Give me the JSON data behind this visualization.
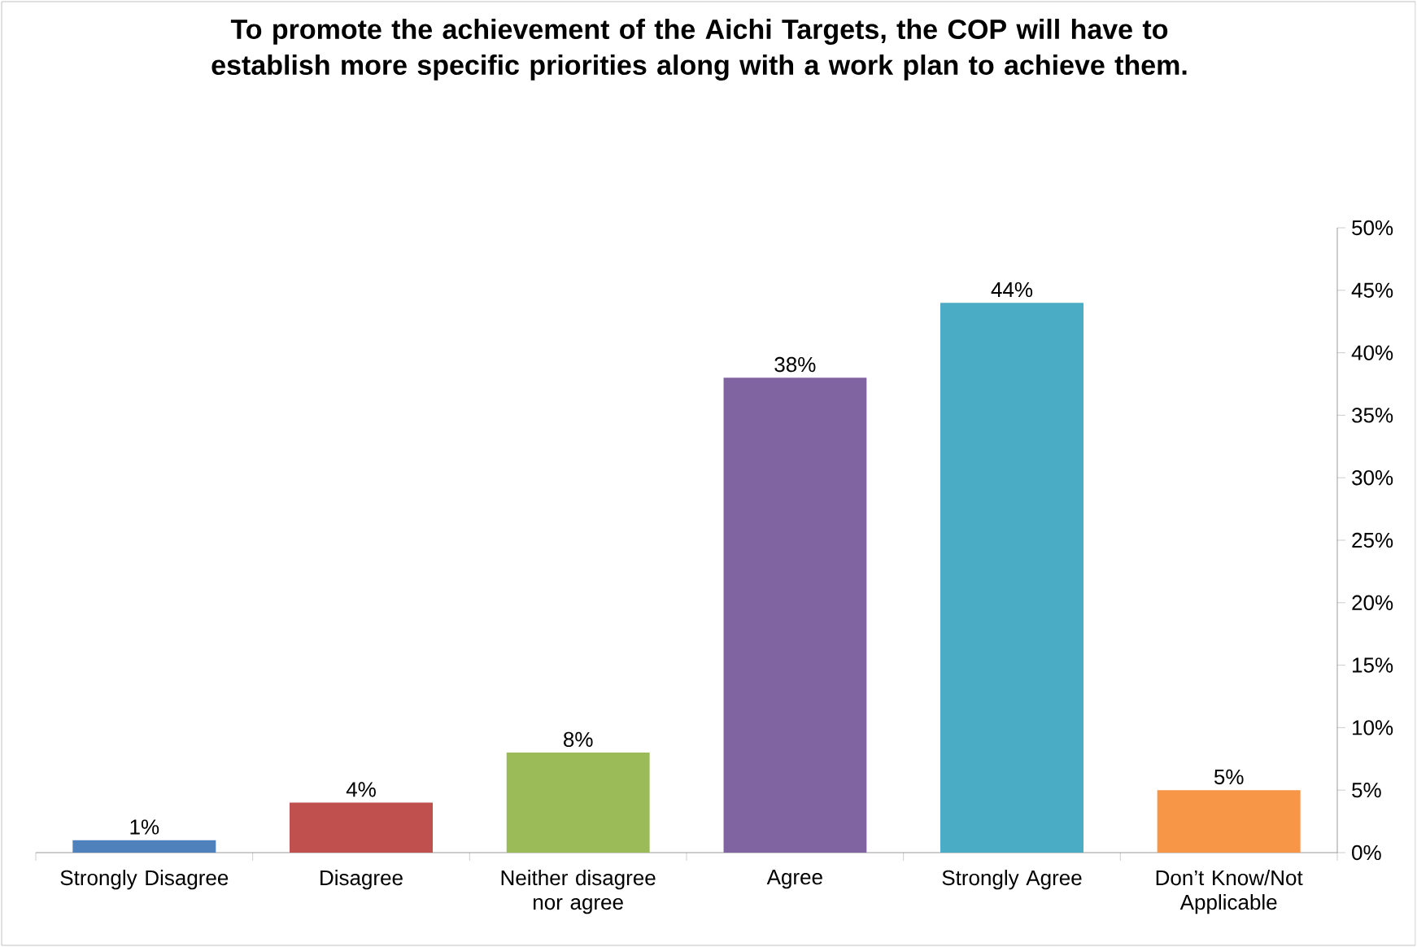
{
  "chart_data": {
    "type": "bar",
    "title": "To promote the achievement of the Aichi Targets, the COP will have to establish more specific priorities along with a work plan to achieve them.",
    "categories": [
      "Strongly Disagree",
      "Disagree",
      "Neither disagree nor agree",
      "Agree",
      "Strongly Agree",
      "Don’t Know/Not Applicable"
    ],
    "values": [
      1,
      4,
      8,
      38,
      44,
      5
    ],
    "value_labels": [
      "1%",
      "4%",
      "8%",
      "38%",
      "44%",
      "5%"
    ],
    "colors": [
      "#4f81bd",
      "#c0504d",
      "#9bbb59",
      "#8064a2",
      "#4bacc6",
      "#f79646"
    ],
    "ylim": [
      0,
      50
    ],
    "yticks": [
      {
        "value": 0,
        "label": "0%"
      },
      {
        "value": 5,
        "label": "5%"
      },
      {
        "value": 10,
        "label": "10%"
      },
      {
        "value": 15,
        "label": "15%"
      },
      {
        "value": 20,
        "label": "20%"
      },
      {
        "value": 25,
        "label": "25%"
      },
      {
        "value": 30,
        "label": "30%"
      },
      {
        "value": 35,
        "label": "35%"
      },
      {
        "value": 40,
        "label": "40%"
      },
      {
        "value": 45,
        "label": "45%"
      },
      {
        "value": 50,
        "label": "50%"
      }
    ]
  }
}
